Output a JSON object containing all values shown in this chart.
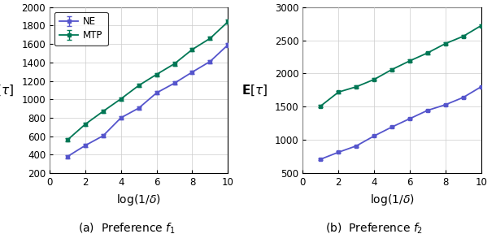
{
  "x": [
    1,
    2,
    3,
    4,
    5,
    6,
    7,
    8,
    9,
    10
  ],
  "f1_NE_y": [
    380,
    500,
    605,
    800,
    905,
    1070,
    1175,
    1295,
    1410,
    1590
  ],
  "f1_NE_err": [
    18,
    18,
    18,
    18,
    18,
    18,
    18,
    18,
    18,
    22
  ],
  "f1_MTP_y": [
    560,
    730,
    870,
    1005,
    1150,
    1270,
    1385,
    1540,
    1660,
    1840
  ],
  "f1_MTP_err": [
    18,
    18,
    18,
    18,
    18,
    18,
    18,
    18,
    18,
    22
  ],
  "f2_NE_y": [
    710,
    815,
    910,
    1060,
    1195,
    1320,
    1445,
    1530,
    1640,
    1800
  ],
  "f2_NE_err": [
    12,
    12,
    12,
    12,
    12,
    12,
    12,
    12,
    12,
    12
  ],
  "f2_MTP_y": [
    1510,
    1720,
    1800,
    1910,
    2060,
    2190,
    2310,
    2450,
    2560,
    2720
  ],
  "f2_MTP_err": [
    18,
    18,
    18,
    18,
    18,
    18,
    18,
    18,
    18,
    22
  ],
  "NE_color": "#5555cc",
  "MTP_color": "#007755",
  "f1_ylim": [
    200,
    2000
  ],
  "f1_yticks": [
    200,
    400,
    600,
    800,
    1000,
    1200,
    1400,
    1600,
    1800,
    2000
  ],
  "f2_ylim": [
    500,
    3000
  ],
  "f2_yticks": [
    500,
    1000,
    1500,
    2000,
    2500,
    3000
  ],
  "xlim": [
    0,
    10
  ],
  "xticks": [
    0,
    2,
    4,
    6,
    8,
    10
  ],
  "xlabel": "$\\log(1/\\delta)$",
  "ylabel": "$\\mathbf{E}[\\tau]$",
  "caption_a": "(a)  Preference $f_1$",
  "caption_b": "(b)  Preference $f_2$",
  "NE_label": "NE",
  "MTP_label": "MTP"
}
